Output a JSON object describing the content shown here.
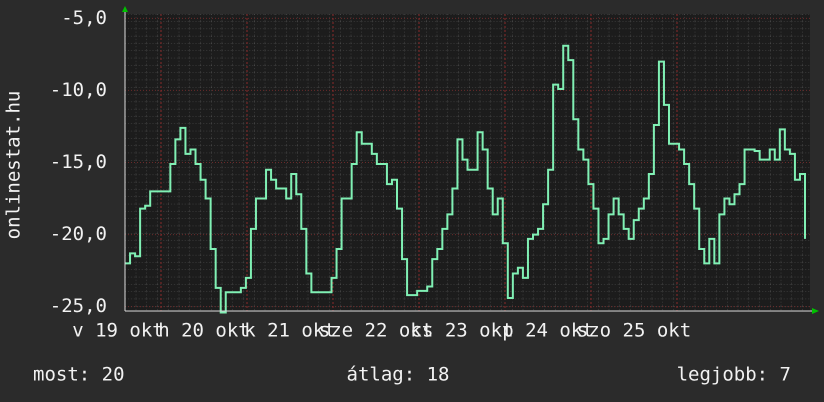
{
  "chart_data": {
    "type": "line",
    "ylabel": "onlinestat.hu",
    "x_labels": [
      "v 19 okt",
      "h 20 okt",
      "k 21 okt",
      "sze 22 okt",
      "cs 23 okt",
      "p 24 okt",
      "szo 25 okt"
    ],
    "series": [
      {
        "color": "#80f0b4",
        "values": [
          -22,
          -21.3,
          -21.5,
          -18.2,
          -18,
          -17,
          -17,
          -17,
          -17,
          -15.1,
          -13.4,
          -12.6,
          -14.4,
          -14.1,
          -15.1,
          -16.2,
          -17.5,
          -21,
          -23.7,
          -25.4,
          -24,
          -24,
          -24,
          -23.7,
          -23,
          -19.6,
          -17.5,
          -17.5,
          -15.5,
          -16.2,
          -16.8,
          -16.8,
          -17.5,
          -15.8,
          -17.2,
          -19.6,
          -22.7,
          -24,
          -24,
          -24,
          -24,
          -23,
          -21,
          -17.5,
          -17.5,
          -15.1,
          -12.9,
          -13.7,
          -13.7,
          -14.4,
          -15.1,
          -15.1,
          -16.5,
          -16.2,
          -18.2,
          -21.7,
          -24.2,
          -24.2,
          -23.9,
          -23.9,
          -23.6,
          -21.7,
          -21,
          -19.6,
          -18.6,
          -16.8,
          -13.4,
          -14.8,
          -15.5,
          -15.5,
          -12.9,
          -14.1,
          -16.8,
          -18.6,
          -17.5,
          -20.6,
          -24.4,
          -22.7,
          -22.3,
          -23,
          -20.3,
          -20,
          -19.6,
          -17.9,
          -15.5,
          -9.6,
          -9.9,
          -6.9,
          -7.9,
          -12,
          -14.1,
          -14.8,
          -16.5,
          -18.2,
          -20.6,
          -20.3,
          -18.6,
          -17.5,
          -18.6,
          -19.6,
          -20.3,
          -19,
          -18.2,
          -17.5,
          -15.8,
          -12.4,
          -8,
          -11,
          -13.7,
          -13.7,
          -14.1,
          -15.1,
          -16.5,
          -18.2,
          -21,
          -22,
          -20.3,
          -22,
          -18.6,
          -17.5,
          -17.9,
          -17.2,
          -16.5,
          -14.1,
          -14.1,
          -14.2,
          -14.8,
          -14.8,
          -14.1,
          -14.8,
          -12.7,
          -14.1,
          -14.4,
          -16.2,
          -15.8,
          -20.3
        ]
      }
    ],
    "ylim": [
      -25.3,
      -4.7
    ],
    "yticks": [
      {
        "value": -5,
        "label": "-5,0"
      },
      {
        "value": -10,
        "label": "-10,0"
      },
      {
        "value": -15,
        "label": "-15,0"
      },
      {
        "value": -20,
        "label": "-20,0"
      },
      {
        "value": -25,
        "label": "-25,0"
      }
    ],
    "grid": true,
    "footer": [
      "most: 20",
      "átlag: 18",
      "legjobb: 7"
    ]
  }
}
